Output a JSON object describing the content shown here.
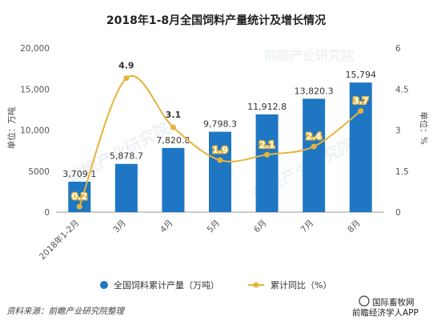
{
  "chart_data": {
    "type": "bar",
    "title": "2018年1-8月全国饲料产量统计及增长情况",
    "categories": [
      "2018年1-2月",
      "3月",
      "4月",
      "5月",
      "6月",
      "7月",
      "8月"
    ],
    "y_left_label": "单位：万吨",
    "y_right_label": "单位：%",
    "y_left_ticks": [
      "0",
      "5000",
      "10,000",
      "15,000",
      "20,000"
    ],
    "y_right_ticks": [
      "0",
      "1.5",
      "3",
      "4.5",
      "6"
    ],
    "ylim_left": [
      0,
      20000
    ],
    "ylim_right": [
      0,
      6
    ],
    "series": [
      {
        "name": "全国饲料累计产量（万吨）",
        "type": "bar",
        "axis": "left",
        "color": "#1f77c4",
        "values": [
          3709.1,
          5878.7,
          7820.8,
          9798.3,
          11912.8,
          13820.3,
          15794
        ],
        "labels": [
          "3,709.1",
          "5,878.7",
          "7,820.8",
          "9,798.3",
          "11,912.8",
          "13,820.3",
          "15,794"
        ]
      },
      {
        "name": "累计同比（%）",
        "type": "line",
        "axis": "right",
        "color": "#e6b43a",
        "values": [
          0.2,
          4.9,
          3.1,
          1.9,
          2.1,
          2.4,
          3.7
        ],
        "labels": [
          "0.2",
          "4.9",
          "3.1",
          "1.9",
          "2.1",
          "2.4",
          "3.7"
        ]
      }
    ],
    "legend_position": "bottom",
    "grid": false
  },
  "footer": {
    "source": "资料来源：前瞻产业研究院整理",
    "brand": "前瞻经济学人APP",
    "badge": "国际畜牧网"
  },
  "watermark": {
    "text": "前瞻产业研究院"
  }
}
